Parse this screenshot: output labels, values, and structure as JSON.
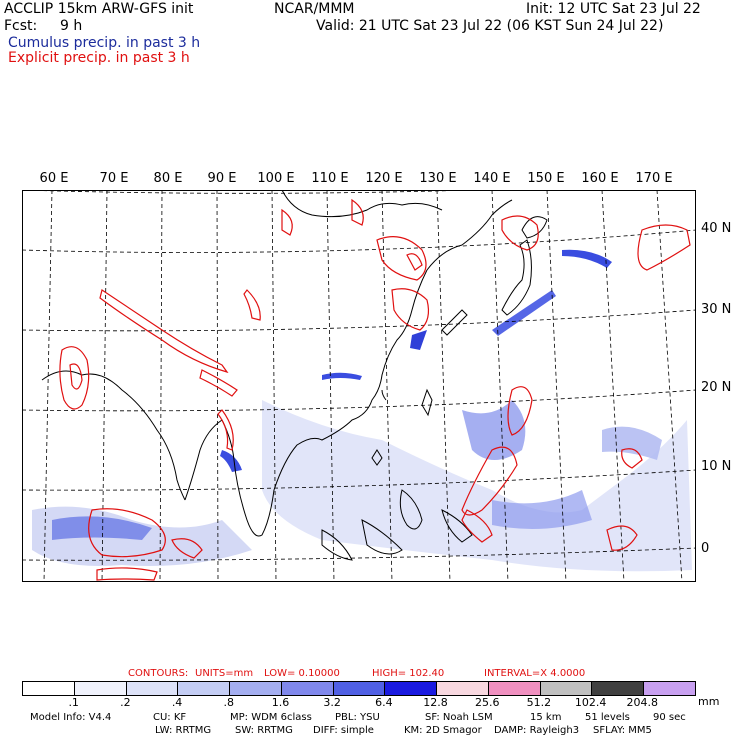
{
  "header": {
    "model": "ACCLIP 15km ARW-GFS init",
    "org": "NCAR/MMM",
    "init": "Init: 12 UTC Sat 23 Jul 22",
    "fcst_label": "Fcst:",
    "fcst_value": "9 h",
    "valid": "Valid: 21 UTC Sat 23 Jul 22 (06 KST Sun 24 Jul 22)",
    "cumulus": "Cumulus precip. in past 3 h",
    "explicit": "Explicit precip. in past 3 h"
  },
  "map": {
    "lon_labels": [
      "60 E",
      "70 E",
      "80 E",
      "90 E",
      "100 E",
      "110 E",
      "120 E",
      "130 E",
      "140 E",
      "150 E",
      "160 E",
      "170 E"
    ],
    "lat_labels": [
      "40 N",
      "30 N",
      "20 N",
      "10 N",
      "0"
    ],
    "colors": {
      "coastline": "#000000",
      "explicit_contour": "#e01010",
      "cumulus_fill": "#3a4de0",
      "grid": "#000000"
    }
  },
  "contours": {
    "label": "CONTOURS:",
    "units": "UNITS=mm",
    "low": "LOW= 0.10000",
    "high": "HIGH= 102.40",
    "interval": "INTERVAL=X 4.0000"
  },
  "colorbar": {
    "ticks": [
      ".1",
      ".2",
      ".4",
      ".8",
      "1.6",
      "3.2",
      "6.4",
      "12.8",
      "25.6",
      "51.2",
      "102.4",
      "204.8"
    ],
    "units": "mm",
    "colors": [
      "#ffffff",
      "#f0f2fc",
      "#dde2f8",
      "#c4cdf4",
      "#a4aef0",
      "#8088ec",
      "#5060e4",
      "#1a1ae0",
      "#f8d8e0",
      "#f090c0",
      "#c0c0c0",
      "#404040",
      "#c8a0f0"
    ]
  },
  "footer": {
    "line1": [
      "Model Info: V4.4",
      "CU: KF",
      "MP: WDM 6class",
      "PBL: YSU",
      "SF: Noah LSM",
      "15 km",
      "51 levels",
      "90 sec"
    ],
    "line2": [
      "LW: RRTMG",
      "SW: RRTMG",
      "DIFF: simple",
      "KM: 2D Smagor",
      "DAMP: Rayleigh3",
      "SFLAY: MM5"
    ]
  }
}
